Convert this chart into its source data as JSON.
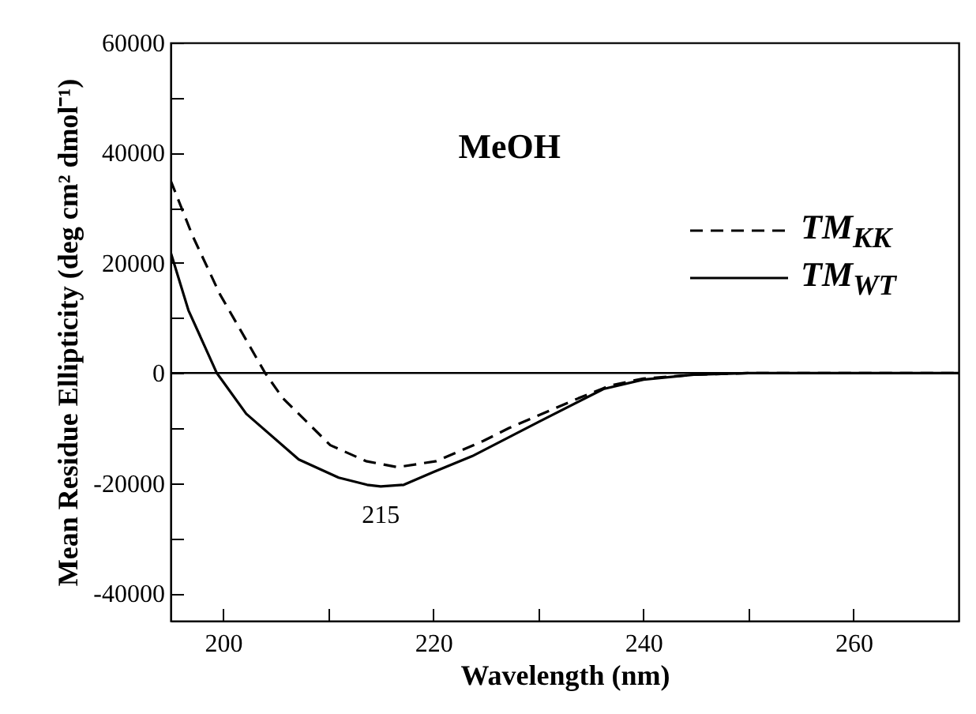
{
  "chart_data": {
    "type": "line",
    "xlabel": "Wavelength (nm)",
    "ylabel": "Mean Residue Ellipticity (deg cm² dmol⁻¹)",
    "annotations": [
      "MeOH",
      {
        "text": "215",
        "x": 215,
        "y": -20600
      }
    ],
    "series": [
      {
        "name": "TM$_{KK}$",
        "color": "#000000",
        "line_style": "dashed",
        "x": [
          195,
          197.1,
          199.7,
          204,
          205.7,
          210.2,
          213.6,
          216.6,
          220.3,
          224.8,
          227.2,
          233.8,
          236.8,
          240,
          245,
          250,
          260,
          270
        ],
        "values": [
          35000,
          24900,
          14300,
          0,
          -4600,
          -13100,
          -16000,
          -17100,
          -16000,
          -12300,
          -10000,
          -4600,
          -2300,
          -1000,
          -300,
          0,
          0,
          0
        ]
      },
      {
        "name": "TM$_{WT}$",
        "color": "#000000",
        "line_style": "solid",
        "x": [
          195,
          196.7,
          199.4,
          202.2,
          207.2,
          211,
          213.7,
          215,
          217.2,
          220,
          223.7,
          230,
          236.2,
          240,
          244.8,
          250,
          260,
          270
        ],
        "values": [
          22000,
          11400,
          0,
          -7400,
          -15700,
          -19000,
          -20300,
          -20600,
          -20300,
          -18000,
          -15100,
          -8900,
          -2900,
          -1200,
          -300,
          0,
          0,
          0
        ]
      }
    ],
    "ref_lines": [
      {
        "axis": "y",
        "value": 0,
        "color": "#000000",
        "line_style": "solid"
      }
    ],
    "xlim": [
      195,
      270
    ],
    "xticks": [
      200,
      {
        "value": 210,
        "label": null
      },
      220,
      {
        "value": 230,
        "label": null
      },
      240,
      {
        "value": 250,
        "label": null
      },
      260
    ],
    "ylim": [
      -45000,
      60000
    ],
    "yticks": [
      -40000,
      {
        "value": -30000,
        "label": null
      },
      -20000,
      {
        "value": -10000,
        "label": null
      },
      0,
      {
        "value": 10000,
        "label": null
      },
      20000,
      {
        "value": 30000,
        "label": null
      },
      40000,
      {
        "value": 50000,
        "label": null
      },
      60000
    ],
    "grid": false,
    "legend": "top right"
  }
}
